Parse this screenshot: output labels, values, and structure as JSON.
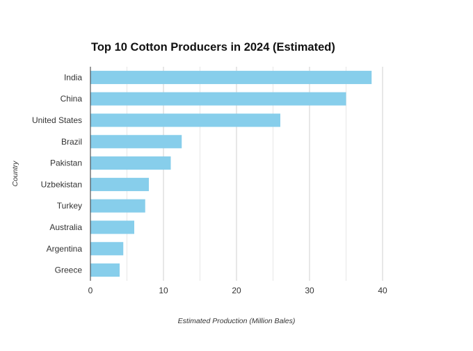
{
  "chart_data": {
    "type": "bar",
    "orientation": "horizontal",
    "title": "Top 10 Cotton Producers in 2024 (Estimated)",
    "xlabel": "Estimated Production (Million Bales)",
    "ylabel": "Country",
    "categories": [
      "India",
      "China",
      "United States",
      "Brazil",
      "Pakistan",
      "Uzbekistan",
      "Turkey",
      "Australia",
      "Argentina",
      "Greece"
    ],
    "values": [
      38.5,
      35.0,
      26.0,
      12.5,
      11.0,
      8.0,
      7.5,
      6.0,
      4.5,
      4.0
    ],
    "xlim": [
      0,
      44
    ],
    "xticks": [
      0,
      10,
      20,
      30,
      40
    ],
    "grid": true,
    "bar_color": "#87ceeb"
  }
}
